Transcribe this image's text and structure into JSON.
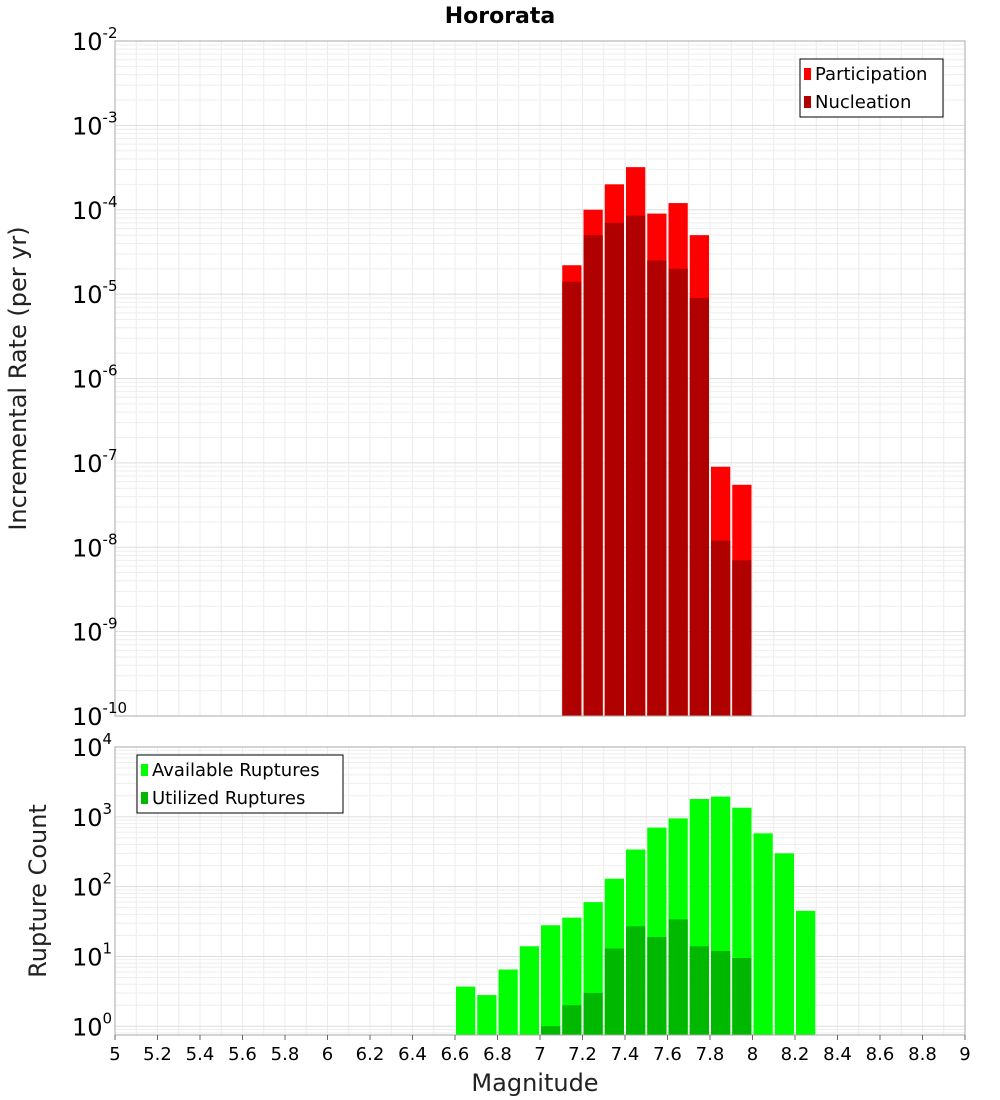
{
  "chart_data": [
    {
      "type": "bar",
      "title": "Hororata",
      "xlabel": "",
      "ylabel": "Incremental Rate (per yr)",
      "yscale": "log",
      "ylim": [
        1e-10,
        0.01
      ],
      "xlim": [
        5,
        9
      ],
      "bin_width": 0.1,
      "y_ticks": [
        {
          "base": "10",
          "exp": "-10",
          "value": 1e-10
        },
        {
          "base": "10",
          "exp": "-9",
          "value": 1e-09
        },
        {
          "base": "10",
          "exp": "-8",
          "value": 1e-08
        },
        {
          "base": "10",
          "exp": "-7",
          "value": 1e-07
        },
        {
          "base": "10",
          "exp": "-6",
          "value": 1e-06
        },
        {
          "base": "10",
          "exp": "-5",
          "value": 1e-05
        },
        {
          "base": "10",
          "exp": "-4",
          "value": 0.0001
        },
        {
          "base": "10",
          "exp": "-3",
          "value": 0.001
        },
        {
          "base": "10",
          "exp": "-2",
          "value": 0.01
        }
      ],
      "legend": {
        "position": "top-right",
        "entries": [
          {
            "label": "Participation",
            "color": "#ff0000"
          },
          {
            "label": "Nucleation",
            "color": "#b00000"
          }
        ]
      },
      "series": [
        {
          "name": "Participation",
          "color": "#ff0000",
          "x": [
            7.15,
            7.25,
            7.35,
            7.45,
            7.55,
            7.65,
            7.75,
            7.85,
            7.95
          ],
          "values": [
            2.2e-05,
            0.0001,
            0.0002,
            0.00032,
            9e-05,
            0.00012,
            5e-05,
            9e-08,
            5.5e-08
          ]
        },
        {
          "name": "Nucleation",
          "color": "#b00000",
          "x": [
            7.15,
            7.25,
            7.35,
            7.45,
            7.55,
            7.65,
            7.75,
            7.85,
            7.95
          ],
          "values": [
            1.4e-05,
            5e-05,
            7e-05,
            8.5e-05,
            2.5e-05,
            2e-05,
            9e-06,
            1.2e-08,
            7e-09
          ]
        }
      ]
    },
    {
      "type": "bar",
      "title": "",
      "xlabel": "Magnitude",
      "ylabel": "Rupture Count",
      "yscale": "log",
      "ylim": [
        0.75,
        10000
      ],
      "xlim": [
        5,
        9
      ],
      "bin_width": 0.1,
      "x_ticks": [
        "5",
        "5.2",
        "5.4",
        "5.6",
        "5.8",
        "6",
        "6.2",
        "6.4",
        "6.6",
        "6.8",
        "7",
        "7.2",
        "7.4",
        "7.6",
        "7.8",
        "8",
        "8.2",
        "8.4",
        "8.6",
        "8.8",
        "9"
      ],
      "y_ticks": [
        {
          "base": "10",
          "exp": "0",
          "value": 1
        },
        {
          "base": "10",
          "exp": "1",
          "value": 10
        },
        {
          "base": "10",
          "exp": "2",
          "value": 100
        },
        {
          "base": "10",
          "exp": "3",
          "value": 1000
        },
        {
          "base": "10",
          "exp": "4",
          "value": 10000
        }
      ],
      "legend": {
        "position": "top-left",
        "entries": [
          {
            "label": "Available Ruptures",
            "color": "#00ff00"
          },
          {
            "label": "Utilized Ruptures",
            "color": "#00b800"
          }
        ]
      },
      "series": [
        {
          "name": "Available Ruptures",
          "color": "#00ff00",
          "x": [
            6.65,
            6.75,
            6.85,
            6.95,
            7.05,
            7.15,
            7.25,
            7.35,
            7.45,
            7.55,
            7.65,
            7.75,
            7.85,
            7.95,
            8.05,
            8.15,
            8.25
          ],
          "values": [
            3.7,
            2.8,
            6.5,
            14,
            28,
            36,
            60,
            130,
            340,
            700,
            950,
            1800,
            1950,
            1350,
            580,
            300,
            45
          ]
        },
        {
          "name": "Utilized Ruptures",
          "color": "#00b800",
          "x": [
            7.05,
            7.15,
            7.25,
            7.35,
            7.45,
            7.55,
            7.65,
            7.75,
            7.85,
            7.95
          ],
          "values": [
            1,
            2,
            3,
            13,
            27,
            19,
            34,
            14,
            12,
            9.5
          ]
        }
      ]
    }
  ]
}
